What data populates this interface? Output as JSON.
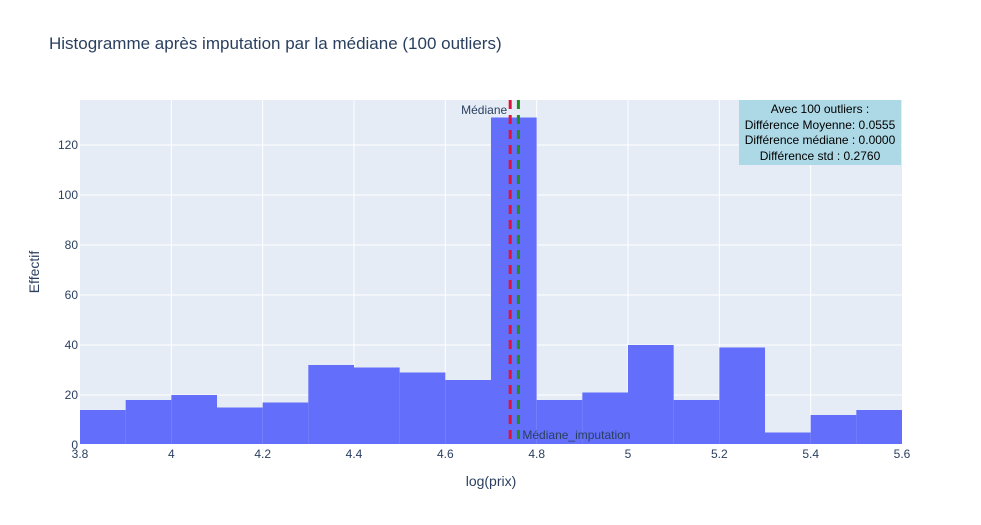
{
  "chart_data": {
    "type": "bar",
    "title": "Histogramme après imputation par la médiane (100 outliers)",
    "xlabel": "log(prix)",
    "ylabel": "Effectif",
    "xlim": [
      3.8,
      5.6
    ],
    "ylim": [
      0,
      138
    ],
    "xticks": [
      3.8,
      4,
      4.2,
      4.4,
      4.6,
      4.8,
      5,
      5.2,
      5.4,
      5.6
    ],
    "xtick_labels": [
      "3.8",
      "4",
      "4.2",
      "4.4",
      "4.6",
      "4.8",
      "5",
      "5.2",
      "5.4",
      "5.6"
    ],
    "yticks": [
      0,
      20,
      40,
      60,
      80,
      100,
      120
    ],
    "ytick_labels": [
      "0",
      "20",
      "40",
      "60",
      "80",
      "100",
      "120"
    ],
    "bins": [
      {
        "x0": 3.8,
        "x1": 3.9,
        "count": 14
      },
      {
        "x0": 3.9,
        "x1": 4.0,
        "count": 18
      },
      {
        "x0": 4.0,
        "x1": 4.1,
        "count": 20
      },
      {
        "x0": 4.1,
        "x1": 4.2,
        "count": 15
      },
      {
        "x0": 4.2,
        "x1": 4.3,
        "count": 17
      },
      {
        "x0": 4.3,
        "x1": 4.4,
        "count": 32
      },
      {
        "x0": 4.4,
        "x1": 4.5,
        "count": 31
      },
      {
        "x0": 4.5,
        "x1": 4.6,
        "count": 29
      },
      {
        "x0": 4.6,
        "x1": 4.7,
        "count": 26
      },
      {
        "x0": 4.7,
        "x1": 4.8,
        "count": 131
      },
      {
        "x0": 4.8,
        "x1": 4.9,
        "count": 18
      },
      {
        "x0": 4.9,
        "x1": 5.0,
        "count": 21
      },
      {
        "x0": 5.0,
        "x1": 5.1,
        "count": 40
      },
      {
        "x0": 5.1,
        "x1": 5.2,
        "count": 18
      },
      {
        "x0": 5.2,
        "x1": 5.3,
        "count": 39
      },
      {
        "x0": 5.3,
        "x1": 5.4,
        "count": 5
      },
      {
        "x0": 5.4,
        "x1": 5.5,
        "count": 12
      },
      {
        "x0": 5.5,
        "x1": 5.6,
        "count": 14
      }
    ],
    "vlines": [
      {
        "label": "Médiane",
        "x": 4.742,
        "color": "#dc143c",
        "label_position": "top-left"
      },
      {
        "label": "Médiane_imputation",
        "x": 4.76,
        "color": "#228b22",
        "label_position": "bottom-right"
      }
    ],
    "annotation_box": {
      "lines": [
        "Avec 100 outliers :",
        "Différence Moyenne: 0.0555",
        "Différence médiane : 0.0000",
        "Différence std : 0.2760"
      ],
      "background": "#add8e6",
      "position": "top-right"
    },
    "bar_color": "#636efa",
    "plot_background": "#e5ecf6",
    "grid": true
  }
}
